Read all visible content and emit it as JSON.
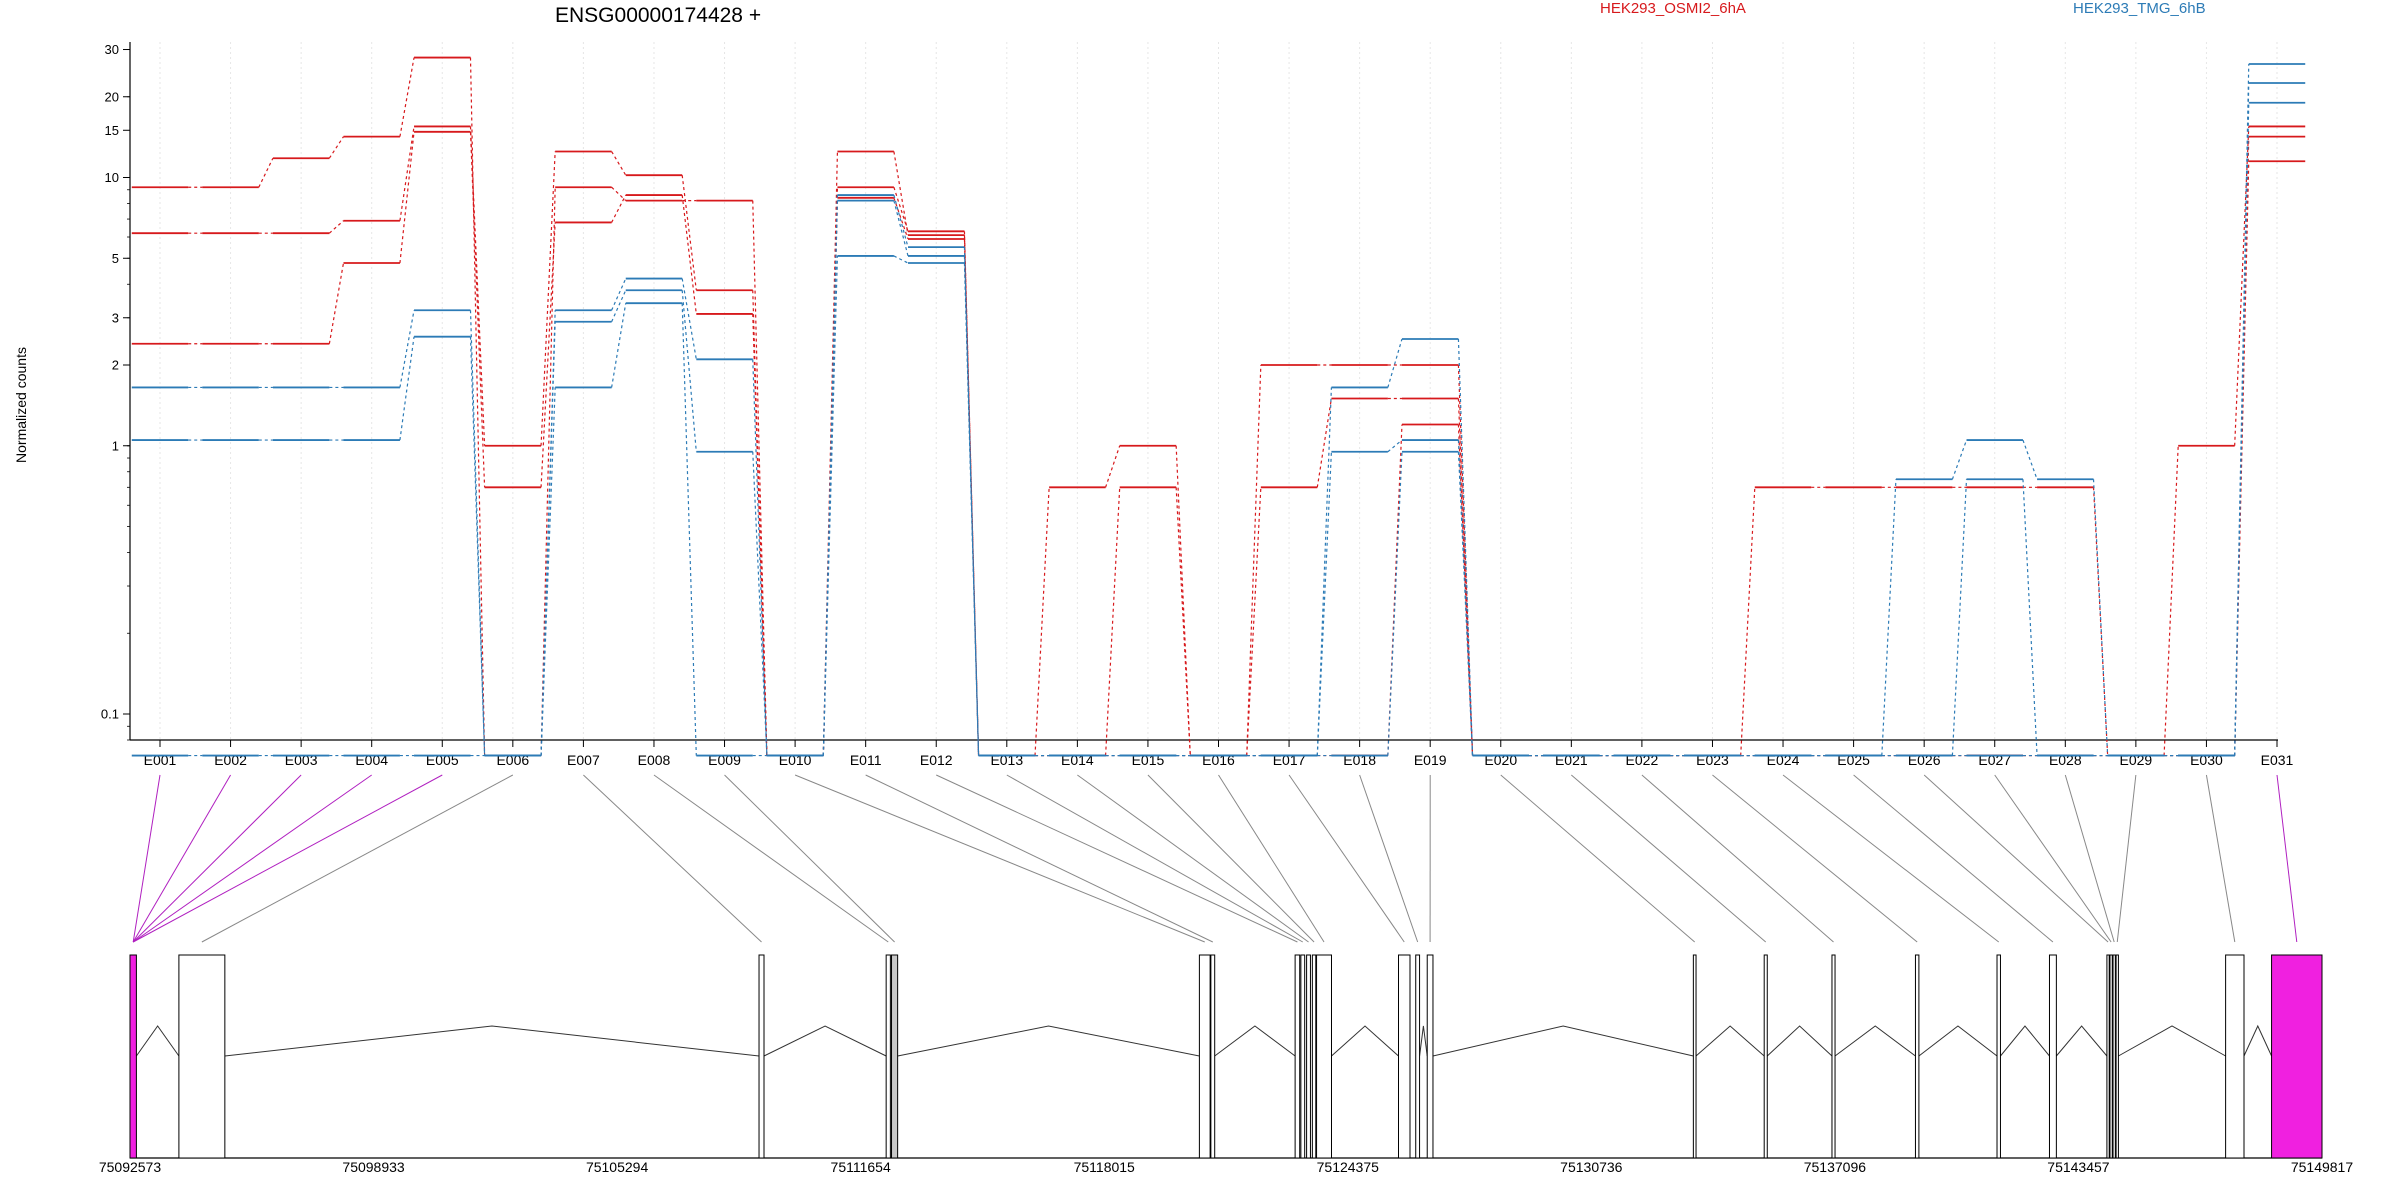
{
  "chart_data": {
    "type": "line",
    "title": "ENSG00000174428 +",
    "ylabel": "Normalized counts",
    "xlabel": "",
    "yscale": "log",
    "ylim": [
      0.08,
      32
    ],
    "grid": true,
    "legend_position": "top",
    "y_ticks": [
      {
        "v": 0.1,
        "label": "0.1"
      },
      {
        "v": 1,
        "label": "1"
      },
      {
        "v": 2,
        "label": "2"
      },
      {
        "v": 3,
        "label": "3"
      },
      {
        "v": 5,
        "label": "5"
      },
      {
        "v": 10,
        "label": "10"
      },
      {
        "v": 15,
        "label": "15"
      },
      {
        "v": 20,
        "label": "20"
      },
      {
        "v": 30,
        "label": "30"
      }
    ],
    "categories": [
      "E001",
      "E002",
      "E003",
      "E004",
      "E005",
      "E006",
      "E007",
      "E008",
      "E009",
      "E010",
      "E011",
      "E012",
      "E013",
      "E014",
      "E015",
      "E016",
      "E017",
      "E018",
      "E019",
      "E020",
      "E021",
      "E022",
      "E023",
      "E024",
      "E025",
      "E026",
      "E027",
      "E028",
      "E029",
      "E030",
      "E031"
    ],
    "legend": [
      {
        "name": "HEK293_OSMI2_6hA",
        "color": "#d7191c"
      },
      {
        "name": "HEK293_TMG_6hB",
        "color": "#2c7bb6"
      }
    ],
    "series": [
      {
        "group": 0,
        "values": [
          9.2,
          9.2,
          11.8,
          14.2,
          28,
          0.07,
          9.2,
          8.2,
          8.2,
          0.07,
          12.5,
          6.1,
          0.07,
          0.07,
          0.7,
          0.07,
          2.0,
          2.0,
          2.0,
          0.07,
          0.07,
          0.07,
          0.07,
          0.7,
          0.7,
          0.7,
          0.7,
          0.7,
          0.07,
          1.0,
          15.5
        ]
      },
      {
        "group": 0,
        "values": [
          6.2,
          6.2,
          6.2,
          6.9,
          15.5,
          1.0,
          12.5,
          10.2,
          3.8,
          0.07,
          9.2,
          6.3,
          0.07,
          0.7,
          1.0,
          0.07,
          0.7,
          1.5,
          1.5,
          0.07,
          0.07,
          0.07,
          0.07,
          0.07,
          0.07,
          0.07,
          0.07,
          0.07,
          0.07,
          0.07,
          14.2
        ]
      },
      {
        "group": 0,
        "values": [
          2.4,
          2.4,
          2.4,
          4.8,
          14.8,
          0.7,
          6.8,
          8.6,
          3.1,
          0.07,
          8.4,
          5.9,
          0.07,
          0.07,
          0.07,
          0.07,
          0.07,
          0.07,
          1.2,
          0.07,
          0.07,
          0.07,
          0.07,
          0.07,
          0.07,
          0.07,
          0.07,
          0.07,
          0.07,
          0.07,
          11.5
        ]
      },
      {
        "group": 1,
        "values": [
          1.65,
          1.65,
          1.65,
          1.65,
          3.2,
          0.07,
          3.2,
          4.2,
          2.1,
          0.07,
          8.6,
          5.5,
          0.07,
          0.07,
          0.07,
          0.07,
          0.07,
          1.65,
          2.5,
          0.07,
          0.07,
          0.07,
          0.07,
          0.07,
          0.07,
          0.75,
          1.05,
          0.75,
          0.07,
          0.07,
          26.5
        ]
      },
      {
        "group": 1,
        "values": [
          1.05,
          1.05,
          1.05,
          1.05,
          2.55,
          0.07,
          2.9,
          3.8,
          0.95,
          0.07,
          8.2,
          5.1,
          0.07,
          0.07,
          0.07,
          0.07,
          0.07,
          0.95,
          1.05,
          0.07,
          0.07,
          0.07,
          0.07,
          0.07,
          0.07,
          0.07,
          0.75,
          0.07,
          0.07,
          0.07,
          22.5
        ]
      },
      {
        "group": 1,
        "values": [
          0.07,
          0.07,
          0.07,
          0.07,
          0.07,
          0.07,
          1.65,
          3.4,
          0.07,
          0.07,
          5.1,
          4.8,
          0.07,
          0.07,
          0.07,
          0.07,
          0.07,
          0.07,
          0.95,
          0.07,
          0.07,
          0.07,
          0.07,
          0.07,
          0.07,
          0.07,
          0.07,
          0.07,
          0.07,
          0.07,
          19.0
        ]
      }
    ],
    "gene_model": {
      "coordinate_ticks": [
        "75092573",
        "75098933",
        "75105294",
        "75111654",
        "75118015",
        "75124375",
        "75130736",
        "75137096",
        "75143457",
        "75149817"
      ],
      "coord_min": 75092573,
      "coord_max": 75149817,
      "exons": [
        {
          "start": 75092573,
          "end": 75092740,
          "id": "E001",
          "tested": true,
          "highlight": true
        },
        {
          "start": 75092573,
          "end": 75092740,
          "id": "E002",
          "tested": true,
          "highlight": true
        },
        {
          "start": 75092573,
          "end": 75092740,
          "id": "E003",
          "tested": true,
          "highlight": true
        },
        {
          "start": 75092573,
          "end": 75092740,
          "id": "E004",
          "tested": true,
          "highlight": true
        },
        {
          "start": 75092573,
          "end": 75092740,
          "id": "E005",
          "tested": true,
          "highlight": true
        },
        {
          "start": 75093850,
          "end": 75095050,
          "id": "E006",
          "tested": true,
          "highlight": false
        },
        {
          "start": 75109000,
          "end": 75109130,
          "id": "E007",
          "tested": true,
          "highlight": false
        },
        {
          "start": 75112320,
          "end": 75112430,
          "id": "E008",
          "tested": true,
          "highlight": false
        },
        {
          "start": 75112460,
          "end": 75112620,
          "id": "E009",
          "tested": false,
          "highlight": false
        },
        {
          "start": 75120500,
          "end": 75120780,
          "id": "E010",
          "tested": true,
          "highlight": false
        },
        {
          "start": 75120800,
          "end": 75120900,
          "id": "E011",
          "tested": true,
          "highlight": false
        },
        {
          "start": 75123000,
          "end": 75123120,
          "id": "E012",
          "tested": true,
          "highlight": false
        },
        {
          "start": 75123150,
          "end": 75123250,
          "id": "E013",
          "tested": true,
          "highlight": false
        },
        {
          "start": 75123300,
          "end": 75123400,
          "id": "E014",
          "tested": true,
          "highlight": false
        },
        {
          "start": 75123450,
          "end": 75123540,
          "id": "E015",
          "tested": true,
          "highlight": false
        },
        {
          "start": 75123560,
          "end": 75123950,
          "id": "E016",
          "tested": true,
          "highlight": false
        },
        {
          "start": 75125700,
          "end": 75126000,
          "id": "E017",
          "tested": true,
          "highlight": false
        },
        {
          "start": 75126150,
          "end": 75126250,
          "id": "E018",
          "tested": true,
          "highlight": false
        },
        {
          "start": 75126450,
          "end": 75126600,
          "id": "E019",
          "tested": true,
          "highlight": false
        },
        {
          "start": 75133400,
          "end": 75133470,
          "id": "E020",
          "tested": true,
          "highlight": false
        },
        {
          "start": 75135250,
          "end": 75135330,
          "id": "E021",
          "tested": true,
          "highlight": false
        },
        {
          "start": 75137020,
          "end": 75137100,
          "id": "E022",
          "tested": true,
          "highlight": false
        },
        {
          "start": 75139200,
          "end": 75139290,
          "id": "E023",
          "tested": true,
          "highlight": false
        },
        {
          "start": 75141330,
          "end": 75141420,
          "id": "E024",
          "tested": true,
          "highlight": false
        },
        {
          "start": 75142700,
          "end": 75142880,
          "id": "E025",
          "tested": true,
          "highlight": false
        },
        {
          "start": 75144200,
          "end": 75144260,
          "id": "E026",
          "tested": true,
          "highlight": false
        },
        {
          "start": 75144280,
          "end": 75144340,
          "id": "E027",
          "tested": true,
          "highlight": false
        },
        {
          "start": 75144360,
          "end": 75144420,
          "id": "E028",
          "tested": true,
          "highlight": false
        },
        {
          "start": 75144440,
          "end": 75144500,
          "id": "E029",
          "tested": true,
          "highlight": false
        },
        {
          "start": 75147300,
          "end": 75147780,
          "id": "E030",
          "tested": true,
          "highlight": false
        },
        {
          "start": 75148500,
          "end": 75149817,
          "id": "E031",
          "tested": true,
          "highlight": true
        }
      ],
      "highlight_color": "#f020e0"
    }
  }
}
